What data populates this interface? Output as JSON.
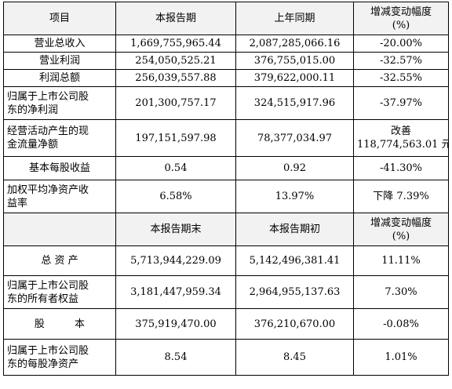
{
  "header1": {
    "item": "项目",
    "current": "本报告期",
    "prior": "上年同期",
    "change_line1": "增减变动幅度",
    "change_line2": "(%)"
  },
  "rows1": [
    {
      "label": "营业总收入",
      "current": "1,669,755,965.44",
      "prior": "2,087,285,066.16",
      "change": "-20.00%"
    },
    {
      "label": "营业利润",
      "current": "254,050,525.21",
      "prior": "376,755,015.00",
      "change": "-32.57%"
    },
    {
      "label": "利润总额",
      "current": "256,039,557.88",
      "prior": "379,622,000.11",
      "change": "-32.55%"
    },
    {
      "label_line1": "归属于上市公司股",
      "label_line2": "东的净利润",
      "current": "201,300,757.17",
      "prior": "324,515,917.96",
      "change": "-37.97%"
    },
    {
      "label_line1": "经营活动产生的现",
      "label_line2": "金流量净额",
      "current": "197,151,597.98",
      "prior": "78,377,034.97",
      "change_line1": "改善",
      "change_line2": "118,774,563.01 元"
    },
    {
      "label": "基本每股收益",
      "current": "0.54",
      "prior": "0.92",
      "change": "-41.30%"
    },
    {
      "label_line1": "加权平均净资产收",
      "label_line2": "益率",
      "current": "6.58%",
      "prior": "13.97%",
      "change": "下降 7.39%"
    }
  ],
  "header2": {
    "current": "本报告期末",
    "prior": "本报告期初",
    "change_line1": "增减变动幅度",
    "change_line2": "(%)"
  },
  "rows2": [
    {
      "label": "总 资 产",
      "current": "5,713,944,229.09",
      "prior": "5,142,496,381.41",
      "change": "11.11%"
    },
    {
      "label_line1": "归属于上市公司股",
      "label_line2": "东的所有者权益",
      "current": "3,181,447,959.34",
      "prior": "2,964,955,137.63",
      "change": "7.30%"
    },
    {
      "label": "股 本",
      "current": "375,919,470.00",
      "prior": "376,210,670.00",
      "change": "-0.08%"
    },
    {
      "label_line1": "归属于上市公司股",
      "label_line2": "东的每股净资产",
      "current": "8.54",
      "prior": "8.45",
      "change": "1.01%"
    }
  ]
}
